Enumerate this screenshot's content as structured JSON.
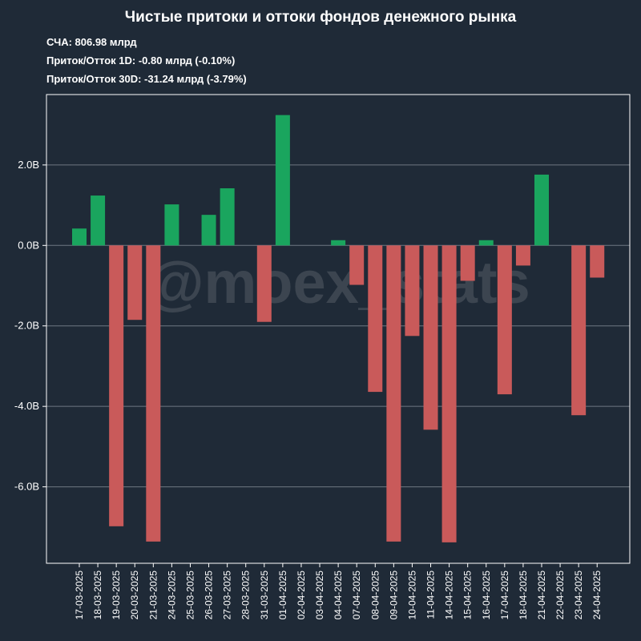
{
  "chart_data": {
    "type": "bar",
    "title": "Чистые притоки и оттоки фондов денежного рынка",
    "stats": [
      "СЧА: 806.98 млрд",
      "Приток/Отток 1D: -0.80 млрд (-0.10%)",
      "Приток/Отток 30D: -31.24 млрд (-3.79%)"
    ],
    "watermark": "@moex_stats",
    "categories": [
      "17-03-2025",
      "18-03-2025",
      "19-03-2025",
      "20-03-2025",
      "21-03-2025",
      "24-03-2025",
      "25-03-2025",
      "26-03-2025",
      "27-03-2025",
      "28-03-2025",
      "31-03-2025",
      "01-04-2025",
      "02-04-2025",
      "03-04-2025",
      "04-04-2025",
      "07-04-2025",
      "08-04-2025",
      "09-04-2025",
      "10-04-2025",
      "11-04-2025",
      "14-04-2025",
      "15-04-2025",
      "16-04-2025",
      "17-04-2025",
      "18-04-2025",
      "21-04-2025",
      "22-04-2025",
      "23-04-2025",
      "24-04-2025"
    ],
    "values": [
      0.42,
      1.24,
      -6.98,
      -1.85,
      -7.36,
      1.02,
      0.0,
      0.76,
      1.42,
      0.0,
      -1.9,
      3.24,
      0.0,
      0.0,
      0.13,
      -0.98,
      -3.64,
      -7.36,
      -2.25,
      -4.58,
      -7.38,
      -0.88,
      0.13,
      -3.7,
      -0.5,
      1.76,
      0.0,
      -4.22,
      -0.8
    ],
    "unit": "B",
    "yticks": [
      2.0,
      0.0,
      -2.0,
      -4.0,
      -6.0
    ],
    "ytick_labels": [
      "2.0B",
      "0.0B",
      "-2.0B",
      "-4.0B",
      "-6.0B"
    ],
    "ylim": [
      -7.9,
      3.75
    ],
    "grid": "horizontal",
    "colors": {
      "background": "#1f2a37",
      "positive": "#1aa55e",
      "negative": "#c95a5a",
      "grid": "#6f7782",
      "text": "#ffffff"
    }
  }
}
